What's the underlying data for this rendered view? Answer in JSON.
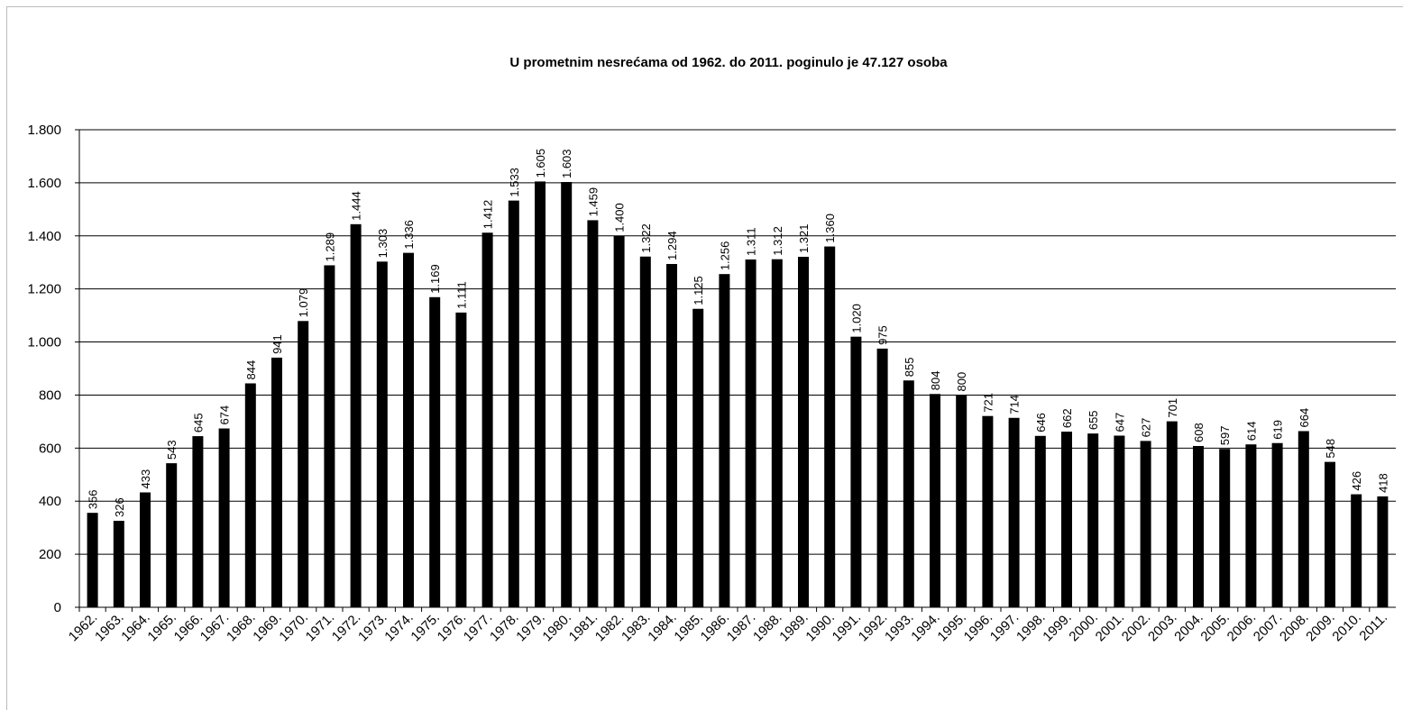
{
  "chart_data": {
    "type": "bar",
    "title": "U prometnim nesrećama od 1962. do 2011. poginulo je 47.127 osoba",
    "categories": [
      "1962.",
      "1963.",
      "1964.",
      "1965.",
      "1966.",
      "1967.",
      "1968.",
      "1969.",
      "1970.",
      "1971.",
      "1972.",
      "1973.",
      "1974.",
      "1975.",
      "1976.",
      "1977.",
      "1978.",
      "1979.",
      "1980.",
      "1981.",
      "1982.",
      "1983.",
      "1984.",
      "1985.",
      "1986.",
      "1987.",
      "1988.",
      "1989.",
      "1990.",
      "1991.",
      "1992.",
      "1993.",
      "1994.",
      "1995.",
      "1996.",
      "1997.",
      "1998.",
      "1999.",
      "2000.",
      "2001.",
      "2002.",
      "2003.",
      "2004.",
      "2005.",
      "2006.",
      "2007.",
      "2008.",
      "2009.",
      "2010.",
      "2011."
    ],
    "values": [
      356,
      326,
      433,
      543,
      645,
      674,
      844,
      941,
      1079,
      1289,
      1444,
      1303,
      1336,
      1169,
      1111,
      1412,
      1533,
      1605,
      1603,
      1459,
      1400,
      1322,
      1294,
      1125,
      1256,
      1311,
      1312,
      1321,
      1360,
      1020,
      975,
      855,
      804,
      800,
      721,
      714,
      646,
      662,
      655,
      647,
      627,
      701,
      608,
      597,
      614,
      619,
      664,
      548,
      426,
      418
    ],
    "value_labels": [
      "356",
      "326",
      "433",
      "543",
      "645",
      "674",
      "844",
      "941",
      "1.079",
      "1.289",
      "1.444",
      "1.303",
      "1.336",
      "1.169",
      "1.111",
      "1.412",
      "1.533",
      "1.605",
      "1.603",
      "1.459",
      "1.400",
      "1.322",
      "1.294",
      "1.125",
      "1.256",
      "1.311",
      "1.312",
      "1.321",
      "1.360",
      "1.020",
      "975",
      "855",
      "804",
      "800",
      "721",
      "714",
      "646",
      "662",
      "655",
      "647",
      "627",
      "701",
      "608",
      "597",
      "614",
      "619",
      "664",
      "548",
      "426",
      "418"
    ],
    "color": "#000000",
    "ylim": [
      0,
      1800
    ],
    "yticks": [
      0,
      200,
      400,
      600,
      800,
      {
        "value": 1000,
        "label": "1.000"
      },
      {
        "value": 1200,
        "label": "1.200"
      },
      {
        "value": 1400,
        "label": "1.400"
      },
      {
        "value": 1600,
        "label": "1.600"
      },
      {
        "value": 1800,
        "label": "1.800"
      }
    ],
    "grid": true
  }
}
